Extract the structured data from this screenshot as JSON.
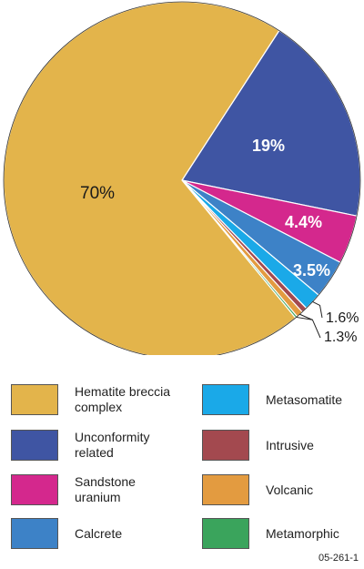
{
  "chart_data": {
    "type": "pie",
    "slices": [
      {
        "label": "Hematite breccia complex",
        "value": 70,
        "color": "#E3B44B"
      },
      {
        "label": "Unconformity related",
        "value": 19,
        "color": "#3F55A3"
      },
      {
        "label": "Sandstone uranium",
        "value": 4.4,
        "color": "#D4288D"
      },
      {
        "label": "Calcrete",
        "value": 3.5,
        "color": "#3D82C7"
      },
      {
        "label": "Metasomatite",
        "value": 1.6,
        "color": "#1AA9E8"
      },
      {
        "label": "Intrusive",
        "value": 0.5,
        "color": "#A3494F"
      },
      {
        "label": "Volcanic",
        "value": 0.6,
        "color": "#E39B40"
      },
      {
        "label": "Metamorphic",
        "value": 0.2,
        "color": "#3AA45C"
      }
    ],
    "data_labels": {
      "hematite": "70%",
      "unconformity": "19%",
      "sandstone": "4.4%",
      "calcrete": "3.5%",
      "metasomatite": "1.6%",
      "small_group": "1.3%"
    },
    "legend": {
      "left": [
        {
          "line1": "Hematite breccia",
          "line2": "complex",
          "color": "#E3B44B"
        },
        {
          "line1": "Unconformity",
          "line2": "related",
          "color": "#3F55A3"
        },
        {
          "line1": "Sandstone",
          "line2": "uranium",
          "color": "#D4288D"
        },
        {
          "line1": "Calcrete",
          "line2": "",
          "color": "#3D82C7"
        }
      ],
      "right": [
        {
          "line1": "Metasomatite",
          "line2": "",
          "color": "#1AA9E8"
        },
        {
          "line1": "Intrusive",
          "line2": "",
          "color": "#A3494F"
        },
        {
          "line1": "Volcanic",
          "line2": "",
          "color": "#E39B40"
        },
        {
          "line1": "Metamorphic",
          "line2": "",
          "color": "#3AA45C"
        }
      ]
    }
  },
  "figure_id": "05-261-1"
}
